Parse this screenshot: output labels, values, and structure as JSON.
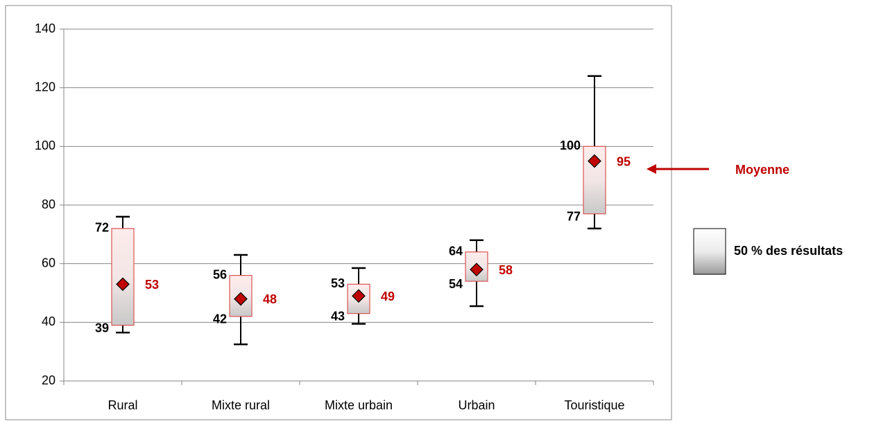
{
  "chart_data": {
    "type": "box",
    "categories": [
      "Rural",
      "Mixte rural",
      "Mixte urbain",
      "Urbain",
      "Touristique"
    ],
    "whisker_low": [
      36.5,
      32.5,
      39.5,
      45.5,
      72
    ],
    "q1": [
      39,
      42,
      43,
      54,
      77
    ],
    "mean": [
      53,
      48,
      49,
      58,
      95
    ],
    "q3": [
      72,
      56,
      53,
      64,
      100
    ],
    "whisker_high": [
      76,
      63,
      58.5,
      68,
      124
    ],
    "ylim": [
      20,
      140
    ],
    "yticks": [
      20,
      40,
      60,
      80,
      100,
      120,
      140
    ],
    "grid": true,
    "mean_color": "#c00000",
    "box_border_color": "#d9534f",
    "annotation": "Moyenne",
    "legend_label": "50 % des résultats"
  }
}
